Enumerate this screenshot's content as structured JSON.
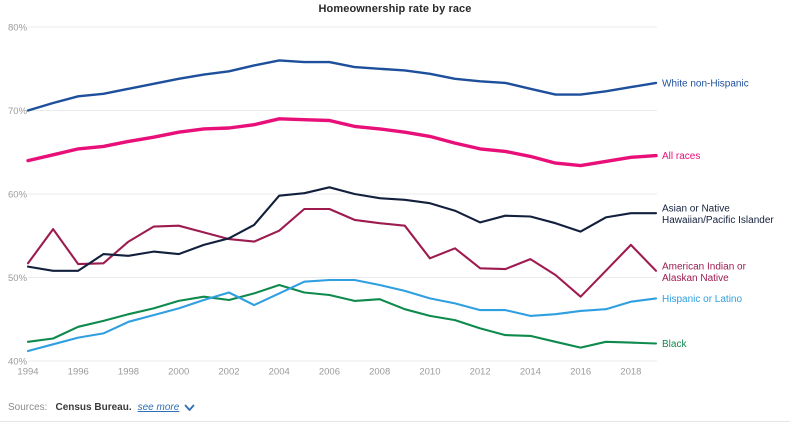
{
  "title": "Homeownership rate by race",
  "footer": {
    "sources_label": "Sources:",
    "source_name": "Census Bureau.",
    "see_more_label": "see more",
    "link_color": "#2e6fb5"
  },
  "colors": {
    "grid": "#ebebeb",
    "axis_text": "#9b9b9b",
    "title_text": "#2a2a2a"
  },
  "chart_data": {
    "type": "line",
    "title": "Homeownership rate by race",
    "xlabel": "",
    "ylabel": "",
    "grid": "horizontal",
    "legend_position": "right-of-line-ends",
    "x": [
      1994,
      1995,
      1996,
      1997,
      1998,
      1999,
      2000,
      2001,
      2002,
      2003,
      2004,
      2005,
      2006,
      2007,
      2008,
      2009,
      2010,
      2011,
      2012,
      2013,
      2014,
      2015,
      2016,
      2017,
      2018,
      2019
    ],
    "x_tick_labels": [
      "1994",
      "1996",
      "1998",
      "2000",
      "2002",
      "2004",
      "2006",
      "2008",
      "2010",
      "2012",
      "2014",
      "2016",
      "2018"
    ],
    "y_ticks": [
      80,
      70,
      60,
      50,
      40
    ],
    "y_tick_suffix": "%",
    "ylim": [
      40,
      80
    ],
    "series": [
      {
        "name": "White non-Hispanic",
        "label_lines": [
          "White non-Hispanic"
        ],
        "color": "#1e4f9c",
        "stroke_width": 2.4,
        "values": [
          70.0,
          70.9,
          71.7,
          72.0,
          72.6,
          73.2,
          73.8,
          74.3,
          74.7,
          75.4,
          76.0,
          75.8,
          75.8,
          75.2,
          75.0,
          74.8,
          74.4,
          73.8,
          73.5,
          73.3,
          72.6,
          71.9,
          71.9,
          72.3,
          72.8,
          73.3
        ]
      },
      {
        "name": "All races",
        "label_lines": [
          "All races"
        ],
        "color": "#e90f79",
        "stroke_width": 3.4,
        "values": [
          64.0,
          64.7,
          65.4,
          65.7,
          66.3,
          66.8,
          67.4,
          67.8,
          67.9,
          68.3,
          69.0,
          68.9,
          68.8,
          68.1,
          67.8,
          67.4,
          66.9,
          66.1,
          65.4,
          65.1,
          64.5,
          63.7,
          63.4,
          63.9,
          64.4,
          64.6
        ]
      },
      {
        "name": "American Indian or Alaskan Native",
        "label_lines": [
          "American Indian or",
          "Alaskan Native"
        ],
        "color": "#9e1b50",
        "stroke_width": 2.1,
        "values": [
          51.7,
          55.8,
          51.6,
          51.7,
          54.3,
          56.1,
          56.2,
          55.4,
          54.6,
          54.3,
          55.6,
          58.2,
          58.2,
          56.9,
          56.5,
          56.2,
          52.3,
          53.5,
          51.1,
          51.0,
          52.2,
          50.3,
          47.7,
          50.8,
          53.9,
          50.8
        ]
      },
      {
        "name": "Asian or Native Hawaiian/Pacific Islander",
        "label_lines": [
          "Asian or Native",
          "Hawaiian/Pacific Islander"
        ],
        "color": "#13203d",
        "stroke_width": 2.1,
        "values": [
          51.3,
          50.8,
          50.8,
          52.8,
          52.6,
          53.1,
          52.8,
          53.9,
          54.7,
          56.3,
          59.8,
          60.1,
          60.8,
          60.0,
          59.5,
          59.3,
          58.9,
          58.0,
          56.6,
          57.4,
          57.3,
          56.5,
          55.5,
          57.2,
          57.7,
          57.7
        ]
      },
      {
        "name": "Black",
        "label_lines": [
          "Black"
        ],
        "color": "#0e8a4c",
        "stroke_width": 2.1,
        "values": [
          42.3,
          42.7,
          44.1,
          44.8,
          45.6,
          46.3,
          47.2,
          47.7,
          47.3,
          48.1,
          49.1,
          48.2,
          47.9,
          47.2,
          47.4,
          46.2,
          45.4,
          44.9,
          43.9,
          43.1,
          43.0,
          42.3,
          41.6,
          42.3,
          42.2,
          42.1
        ]
      },
      {
        "name": "Hispanic or Latino",
        "label_lines": [
          "Hispanic or Latino"
        ],
        "color": "#2f9fe1",
        "stroke_width": 2.1,
        "values": [
          41.2,
          42.0,
          42.8,
          43.3,
          44.7,
          45.5,
          46.3,
          47.3,
          48.2,
          46.7,
          48.1,
          49.5,
          49.7,
          49.7,
          49.1,
          48.4,
          47.5,
          46.9,
          46.1,
          46.1,
          45.4,
          45.6,
          46.0,
          46.2,
          47.1,
          47.5
        ]
      }
    ]
  }
}
